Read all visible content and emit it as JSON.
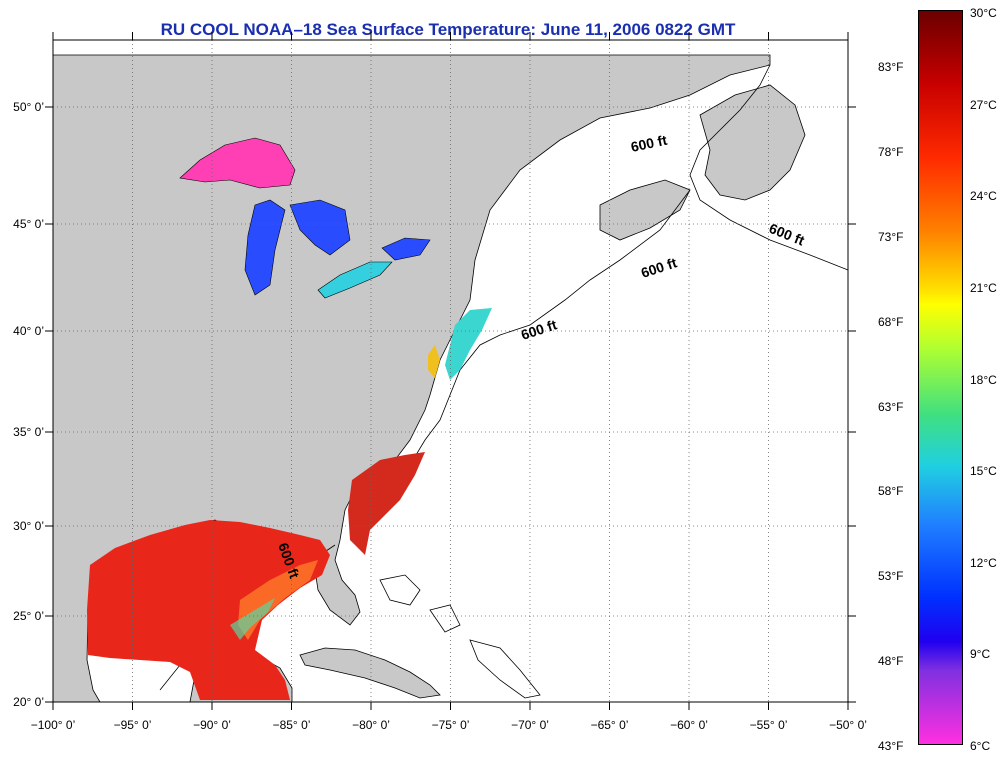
{
  "title": "RU COOL  NOAA–18  Sea Surface Temperature:  June 11, 2006 0822 GMT",
  "map": {
    "lon_labels": [
      "−100° 0’",
      "−95° 0’",
      "−90° 0’",
      "−85° 0’",
      "−80° 0’",
      "−75° 0’",
      "−70° 0’",
      "−65° 0’",
      "−60° 0’",
      "−55° 0’",
      "−50° 0’"
    ],
    "lat_labels": [
      "20° 0’",
      "25° 0’",
      "30° 0’",
      "35° 0’",
      "40° 0’",
      "45° 0’",
      "50° 0’"
    ],
    "isobath_label": "600 ft",
    "colors": {
      "land": "#c8c8c8",
      "ocean": "#ffffff",
      "gulf_warm": "#e8261a",
      "lake_superior": "#ff3fb4",
      "lakes_cool": "#2a4cff",
      "lake_erie": "#35d0e0",
      "grid": "#666666"
    }
  },
  "colorbar": {
    "celsius": [
      "30°C",
      "27°C",
      "24°C",
      "21°C",
      "18°C",
      "15°C",
      "12°C",
      "9°C",
      "6°C"
    ],
    "fahrenheit": [
      "83°F",
      "78°F",
      "73°F",
      "68°F",
      "63°F",
      "58°F",
      "53°F",
      "48°F",
      "43°F"
    ]
  }
}
